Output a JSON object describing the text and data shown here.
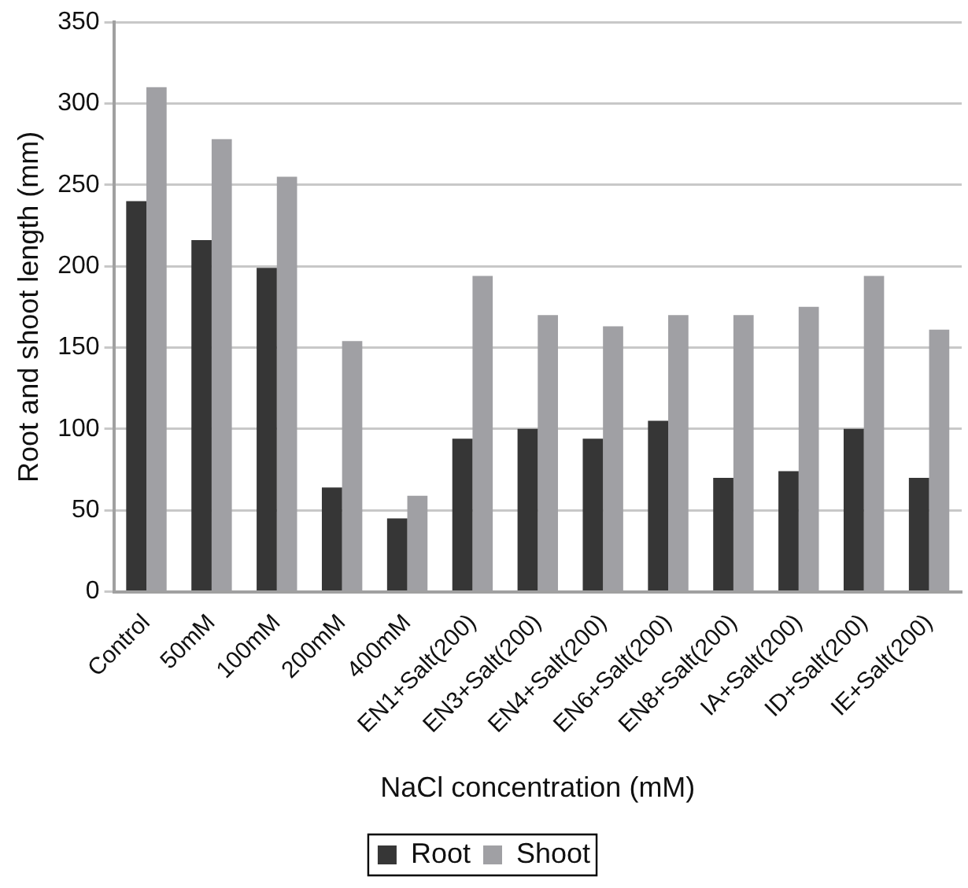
{
  "chart_data": {
    "type": "bar",
    "xlabel": "NaCl concentration (mM)",
    "ylabel": "Root and shoot length (mm)",
    "categories": [
      "Control",
      "50mM",
      "100mM",
      "200mM",
      "400mM",
      "EN1+Salt(200)",
      "EN3+Salt(200)",
      "EN4+Salt(200)",
      "EN6+Salt(200)",
      "EN8+Salt(200)",
      "IA+Salt(200)",
      "ID+Salt(200)",
      "IE+Salt(200)"
    ],
    "series": [
      {
        "name": "Root",
        "color": "#363636",
        "values": [
          240,
          216,
          199,
          64,
          45,
          94,
          100,
          94,
          105,
          70,
          74,
          100,
          70
        ]
      },
      {
        "name": "Shoot",
        "color": "#a0a0a4",
        "values": [
          310,
          278,
          255,
          154,
          59,
          194,
          170,
          163,
          170,
          170,
          175,
          194,
          161
        ]
      }
    ],
    "ylim": [
      0,
      350
    ],
    "yticks": [
      0,
      50,
      100,
      150,
      200,
      250,
      300,
      350
    ],
    "grid": "y",
    "legend": "bottom"
  }
}
